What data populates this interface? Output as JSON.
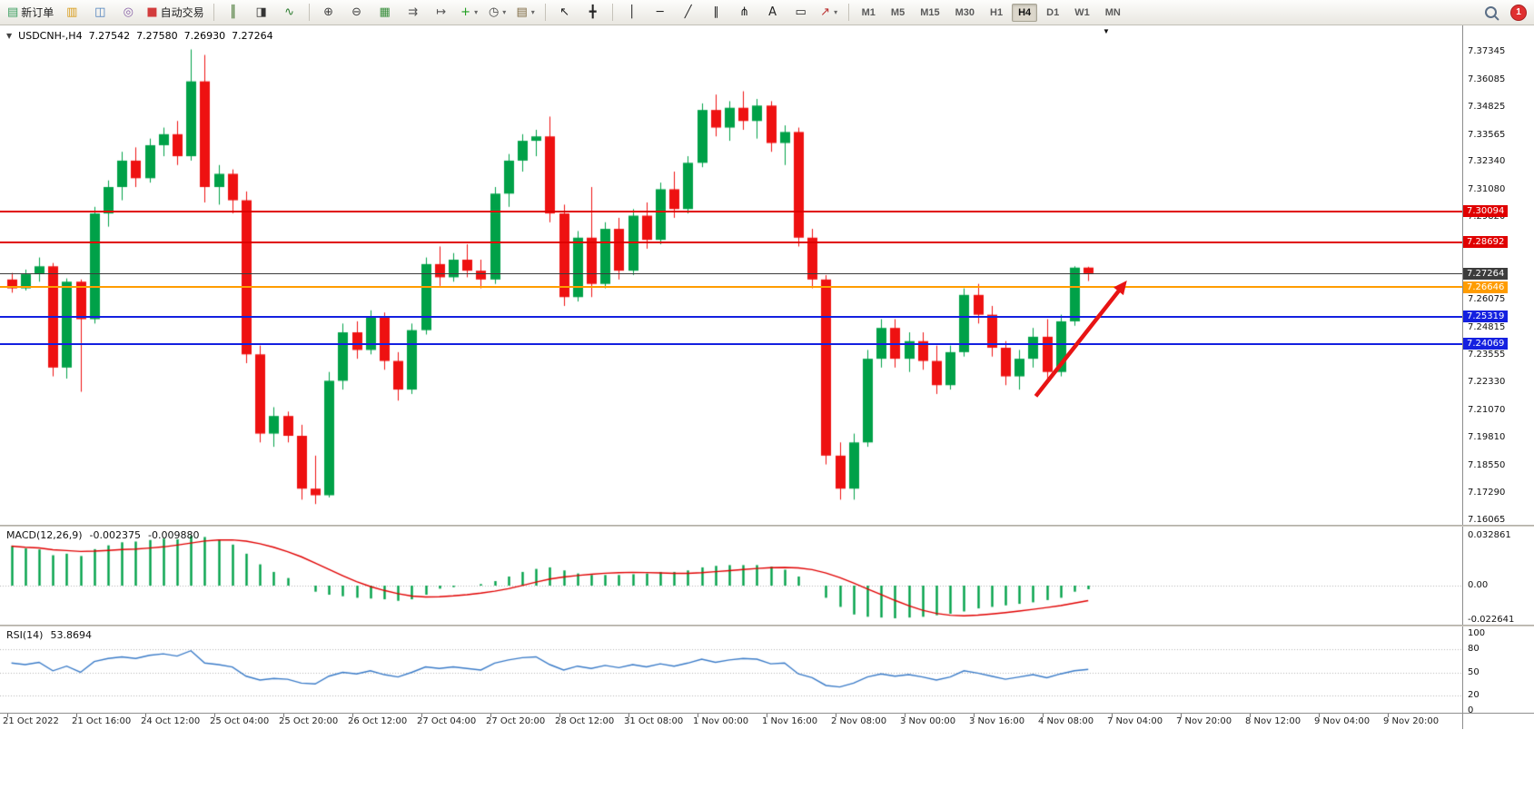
{
  "toolbar": {
    "caret_glyph": "▾",
    "notification_count": "1",
    "timeframes": [
      "M1",
      "M5",
      "M15",
      "M30",
      "H1",
      "H4",
      "D1",
      "W1",
      "MN"
    ],
    "active_timeframe": "H4",
    "items": [
      {
        "t": "btn",
        "name": "new-order-button",
        "glyph": "▤",
        "color": "#3a9e5f",
        "label": "新订单"
      },
      {
        "t": "btn",
        "name": "market-watch-button",
        "glyph": "▥",
        "color": "#d89c1a"
      },
      {
        "t": "btn",
        "name": "data-window-button",
        "glyph": "◫",
        "color": "#4a7ebb"
      },
      {
        "t": "btn",
        "name": "navigator-button",
        "glyph": "◎",
        "color": "#8a64a8"
      },
      {
        "t": "btn",
        "name": "autotrading-button",
        "glyph": "■",
        "color": "#d23c3c",
        "label": "自动交易"
      },
      {
        "t": "sep"
      },
      {
        "t": "btn",
        "name": "bar-chart-button",
        "glyph": "║",
        "color": "#33691e"
      },
      {
        "t": "btn",
        "name": "candlestick-chart-button",
        "glyph": "◨",
        "color": "#333333"
      },
      {
        "t": "btn",
        "name": "line-chart-button",
        "glyph": "∿",
        "color": "#2e7d32"
      },
      {
        "t": "sep"
      },
      {
        "t": "btn",
        "name": "zoom-in-button",
        "glyph": "⊕",
        "color": "#444444"
      },
      {
        "t": "btn",
        "name": "zoom-out-button",
        "glyph": "⊖",
        "color": "#444444"
      },
      {
        "t": "btn",
        "name": "tile-windows-button",
        "glyph": "▦",
        "color": "#388e3c"
      },
      {
        "t": "btn",
        "name": "auto-scroll-button",
        "glyph": "⇉",
        "color": "#555555"
      },
      {
        "t": "btn",
        "name": "chart-shift-button",
        "glyph": "↦",
        "color": "#555555"
      },
      {
        "t": "btn",
        "name": "indicators-button",
        "glyph": "+",
        "color": "#1d9e1d",
        "caret": true
      },
      {
        "t": "btn",
        "name": "periods-button",
        "glyph": "◷",
        "color": "#444444",
        "caret": true
      },
      {
        "t": "btn",
        "name": "templates-button",
        "glyph": "▤",
        "color": "#7d6840",
        "caret": true
      },
      {
        "t": "sep"
      },
      {
        "t": "btn",
        "name": "cursor-button",
        "glyph": "↖",
        "color": "#222222"
      },
      {
        "t": "btn",
        "name": "crosshair-button",
        "glyph": "╋",
        "color": "#222222"
      },
      {
        "t": "sep"
      },
      {
        "t": "btn",
        "name": "vertical-line-button",
        "glyph": "│",
        "color": "#222222"
      },
      {
        "t": "btn",
        "name": "horizontal-line-button",
        "glyph": "─",
        "color": "#222222"
      },
      {
        "t": "btn",
        "name": "trendline-button",
        "glyph": "╱",
        "color": "#222222"
      },
      {
        "t": "btn",
        "name": "equidistant-channel-button",
        "glyph": "∥",
        "color": "#222222"
      },
      {
        "t": "btn",
        "name": "fibonacci-button",
        "glyph": "⋔",
        "color": "#222222"
      },
      {
        "t": "btn",
        "name": "text-button",
        "glyph": "A",
        "color": "#222222"
      },
      {
        "t": "btn",
        "name": "text-label-button",
        "glyph": "▭",
        "color": "#222222"
      },
      {
        "t": "btn",
        "name": "arrows-button",
        "glyph": "↗",
        "color": "#bb3333",
        "caret": true
      },
      {
        "t": "sep"
      },
      {
        "t": "tf"
      },
      {
        "t": "spacer"
      },
      {
        "t": "search",
        "name": "search-button"
      },
      {
        "t": "badge",
        "name": "notification-badge"
      }
    ]
  },
  "chart": {
    "title": {
      "collapse_arrow": "▼",
      "symbol_period": "USDCNH-,H4",
      "open": "7.27542",
      "high": "7.27580",
      "low": "7.26930",
      "close": "7.27264"
    },
    "shift_marker_glyph": "▼",
    "shift_marker_bar": 79.3,
    "colors": {
      "bull": "#00a148",
      "bear": "#ee1111",
      "background": "#ffffff",
      "axis_text": "#1a1a1a"
    },
    "price_axis_labels": [
      "7.37345",
      "7.36085",
      "7.34825",
      "7.33565",
      "7.32340",
      "7.31080",
      "7.29820",
      "7.28560",
      "7.27300",
      "7.26075",
      "7.24815",
      "7.23555",
      "7.22330",
      "7.21070",
      "7.19810",
      "7.18550",
      "7.17290",
      "7.16065"
    ],
    "hlines": [
      {
        "price": 7.30094,
        "label": "7.30094",
        "color": "#e00000",
        "type": "resistance-line-1",
        "thick": 2
      },
      {
        "price": 7.28692,
        "label": "7.28692",
        "color": "#e00000",
        "type": "resistance-line-2",
        "thick": 2
      },
      {
        "price": 7.27264,
        "label": "7.27264",
        "color": "#3c3c3c",
        "type": "current-price-line",
        "thick": 1
      },
      {
        "price": 7.26646,
        "label": "7.26646",
        "color": "#ff9c00",
        "type": "level-line-orange",
        "thick": 2
      },
      {
        "price": 7.25319,
        "label": "7.25319",
        "color": "#1420e0",
        "type": "support-line-1",
        "thick": 2
      },
      {
        "price": 7.24069,
        "label": "7.24069",
        "color": "#1420e0",
        "type": "support-line-2",
        "thick": 2
      }
    ],
    "annotation_arrow": {
      "from_bar": 74.2,
      "from_price": 7.217,
      "to_bar": 80.8,
      "to_price": 7.2695,
      "color": "#e81414"
    }
  },
  "macd_panel": {
    "name": "MACD(12,26,9)",
    "value_main": "-0.002375",
    "value_signal": "-0.009880",
    "axis_labels": [
      "0.032861",
      "0.00",
      "-0.022641"
    ],
    "histogram_color": "#00a148",
    "signal_color": "#e00000"
  },
  "rsi_panel": {
    "name": "RSI(14)",
    "value": "53.8694",
    "axis_labels": [
      "100",
      "80",
      "50",
      "20",
      "0"
    ],
    "levels": [
      80,
      50,
      20
    ],
    "line_color": "#3a7bc8"
  },
  "chart_data": [
    {
      "type": "candlestick",
      "title": "USDCNH-,H4",
      "timeframe": "H4",
      "ylim": [
        7.16065,
        7.37345
      ],
      "x_labels": [
        "21 Oct 2022",
        "21 Oct 16:00",
        "24 Oct 12:00",
        "25 Oct 04:00",
        "25 Oct 20:00",
        "26 Oct 12:00",
        "27 Oct 04:00",
        "27 Oct 20:00",
        "28 Oct 12:00",
        "31 Oct 08:00",
        "1 Nov 00:00",
        "1 Nov 16:00",
        "2 Nov 08:00",
        "3 Nov 00:00",
        "3 Nov 16:00",
        "4 Nov 08:00",
        "7 Nov 04:00",
        "7 Nov 20:00",
        "8 Nov 12:00",
        "9 Nov 04:00",
        "9 Nov 20:00"
      ],
      "levels": [
        7.30094,
        7.28692,
        7.27264,
        7.26646,
        7.25319,
        7.24069
      ],
      "ohlc": [
        [
          7.27,
          7.273,
          7.264,
          7.266
        ],
        [
          7.266,
          7.2745,
          7.265,
          7.2725
        ],
        [
          7.2725,
          7.28,
          7.269,
          7.276
        ],
        [
          7.276,
          7.2775,
          7.226,
          7.23
        ],
        [
          7.23,
          7.2705,
          7.225,
          7.269
        ],
        [
          7.269,
          7.27,
          7.219,
          7.252
        ],
        [
          7.252,
          7.303,
          7.25,
          7.3
        ],
        [
          7.3,
          7.315,
          7.294,
          7.312
        ],
        [
          7.312,
          7.328,
          7.306,
          7.324
        ],
        [
          7.324,
          7.33,
          7.312,
          7.316
        ],
        [
          7.316,
          7.334,
          7.314,
          7.331
        ],
        [
          7.331,
          7.339,
          7.326,
          7.336
        ],
        [
          7.336,
          7.342,
          7.322,
          7.326
        ],
        [
          7.326,
          7.3745,
          7.324,
          7.36
        ],
        [
          7.36,
          7.372,
          7.305,
          7.312
        ],
        [
          7.312,
          7.322,
          7.304,
          7.318
        ],
        [
          7.318,
          7.32,
          7.3,
          7.306
        ],
        [
          7.306,
          7.31,
          7.232,
          7.236
        ],
        [
          7.236,
          7.24,
          7.196,
          7.2
        ],
        [
          7.2,
          7.212,
          7.194,
          7.208
        ],
        [
          7.208,
          7.21,
          7.196,
          7.199
        ],
        [
          7.199,
          7.204,
          7.17,
          7.175
        ],
        [
          7.175,
          7.19,
          7.168,
          7.172
        ],
        [
          7.172,
          7.228,
          7.171,
          7.224
        ],
        [
          7.224,
          7.25,
          7.22,
          7.246
        ],
        [
          7.246,
          7.251,
          7.234,
          7.238
        ],
        [
          7.238,
          7.256,
          7.236,
          7.253
        ],
        [
          7.253,
          7.255,
          7.229,
          7.233
        ],
        [
          7.233,
          7.237,
          7.215,
          7.22
        ],
        [
          7.22,
          7.25,
          7.218,
          7.247
        ],
        [
          7.247,
          7.28,
          7.245,
          7.277
        ],
        [
          7.277,
          7.285,
          7.267,
          7.271
        ],
        [
          7.271,
          7.282,
          7.269,
          7.279
        ],
        [
          7.279,
          7.286,
          7.271,
          7.274
        ],
        [
          7.274,
          7.279,
          7.266,
          7.27
        ],
        [
          7.27,
          7.312,
          7.268,
          7.309
        ],
        [
          7.309,
          7.327,
          7.303,
          7.324
        ],
        [
          7.324,
          7.336,
          7.319,
          7.333
        ],
        [
          7.333,
          7.338,
          7.326,
          7.335
        ],
        [
          7.335,
          7.344,
          7.296,
          7.3
        ],
        [
          7.3,
          7.304,
          7.258,
          7.262
        ],
        [
          7.262,
          7.292,
          7.26,
          7.289
        ],
        [
          7.289,
          7.312,
          7.262,
          7.268
        ],
        [
          7.268,
          7.296,
          7.266,
          7.293
        ],
        [
          7.293,
          7.298,
          7.27,
          7.274
        ],
        [
          7.274,
          7.302,
          7.272,
          7.299
        ],
        [
          7.299,
          7.305,
          7.284,
          7.288
        ],
        [
          7.288,
          7.314,
          7.286,
          7.311
        ],
        [
          7.311,
          7.319,
          7.298,
          7.302
        ],
        [
          7.302,
          7.326,
          7.3,
          7.323
        ],
        [
          7.323,
          7.35,
          7.321,
          7.347
        ],
        [
          7.347,
          7.354,
          7.335,
          7.339
        ],
        [
          7.339,
          7.351,
          7.333,
          7.348
        ],
        [
          7.348,
          7.3555,
          7.338,
          7.342
        ],
        [
          7.342,
          7.352,
          7.334,
          7.349
        ],
        [
          7.349,
          7.351,
          7.328,
          7.332
        ],
        [
          7.332,
          7.34,
          7.322,
          7.337
        ],
        [
          7.337,
          7.339,
          7.285,
          7.289
        ],
        [
          7.289,
          7.293,
          7.266,
          7.27
        ],
        [
          7.27,
          7.272,
          7.186,
          7.19
        ],
        [
          7.19,
          7.196,
          7.17,
          7.175
        ],
        [
          7.175,
          7.2,
          7.17,
          7.196
        ],
        [
          7.196,
          7.238,
          7.194,
          7.234
        ],
        [
          7.234,
          7.252,
          7.23,
          7.248
        ],
        [
          7.248,
          7.252,
          7.23,
          7.234
        ],
        [
          7.234,
          7.246,
          7.228,
          7.242
        ],
        [
          7.242,
          7.246,
          7.229,
          7.233
        ],
        [
          7.233,
          7.24,
          7.218,
          7.222
        ],
        [
          7.222,
          7.24,
          7.22,
          7.237
        ],
        [
          7.237,
          7.266,
          7.235,
          7.263
        ],
        [
          7.263,
          7.268,
          7.25,
          7.254
        ],
        [
          7.254,
          7.258,
          7.235,
          7.239
        ],
        [
          7.239,
          7.242,
          7.222,
          7.226
        ],
        [
          7.226,
          7.238,
          7.22,
          7.234
        ],
        [
          7.234,
          7.248,
          7.23,
          7.244
        ],
        [
          7.244,
          7.252,
          7.224,
          7.228
        ],
        [
          7.228,
          7.254,
          7.226,
          7.251
        ],
        [
          7.251,
          7.276,
          7.249,
          7.2754
        ],
        [
          7.27542,
          7.2758,
          7.2693,
          7.27264
        ]
      ]
    },
    {
      "type": "bar",
      "title": "MACD(12,26,9)",
      "signal_period": 9,
      "ylim": [
        -0.022641,
        0.032861
      ],
      "values": [
        0.026,
        0.0245,
        0.0238,
        0.02,
        0.021,
        0.0195,
        0.024,
        0.0265,
        0.0285,
        0.029,
        0.03,
        0.031,
        0.0305,
        0.0328,
        0.032,
        0.03,
        0.027,
        0.021,
        0.014,
        0.009,
        0.005,
        0.0,
        -0.004,
        -0.006,
        -0.007,
        -0.008,
        -0.0085,
        -0.009,
        -0.01,
        -0.009,
        -0.006,
        -0.002,
        -0.001,
        0.0,
        0.001,
        0.003,
        0.006,
        0.009,
        0.011,
        0.012,
        0.01,
        0.008,
        0.007,
        0.007,
        0.007,
        0.0075,
        0.008,
        0.009,
        0.009,
        0.01,
        0.012,
        0.013,
        0.0135,
        0.0135,
        0.0135,
        0.0125,
        0.0105,
        0.006,
        0.0,
        -0.008,
        -0.014,
        -0.019,
        -0.0205,
        -0.021,
        -0.0215,
        -0.021,
        -0.0205,
        -0.0195,
        -0.0185,
        -0.017,
        -0.015,
        -0.014,
        -0.013,
        -0.012,
        -0.011,
        -0.0095,
        -0.008,
        -0.004,
        -0.002375
      ]
    },
    {
      "type": "line",
      "title": "RSI(14)",
      "ylim": [
        0,
        100
      ],
      "levels": [
        80,
        50,
        20
      ],
      "values": [
        62,
        60,
        63,
        52,
        58,
        50,
        64,
        68,
        70,
        68,
        72,
        74,
        71,
        78,
        62,
        60,
        57,
        45,
        40,
        42,
        41,
        36,
        35,
        45,
        50,
        48,
        52,
        47,
        44,
        50,
        57,
        55,
        57,
        55,
        53,
        62,
        66,
        69,
        70,
        60,
        53,
        58,
        55,
        59,
        56,
        60,
        57,
        61,
        58,
        62,
        67,
        63,
        66,
        68,
        67,
        61,
        62,
        48,
        43,
        33,
        31,
        36,
        44,
        48,
        45,
        47,
        44,
        40,
        44,
        52,
        49,
        45,
        41,
        44,
        47,
        43,
        48,
        52,
        53.8694
      ]
    }
  ]
}
